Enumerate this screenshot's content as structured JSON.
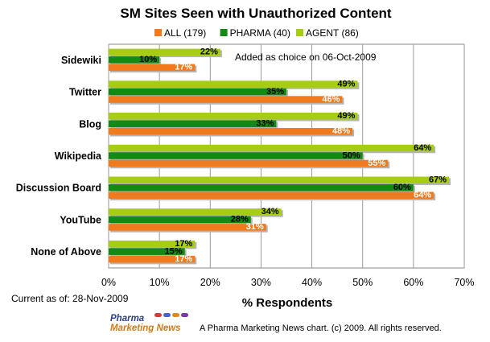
{
  "chart_data": {
    "type": "bar",
    "orientation": "horizontal",
    "title": "SM Sites Seen with Unauthorized Content",
    "categories": [
      "Sidewiki",
      "Twitter",
      "Blog",
      "Wikipedia",
      "Discussion Board",
      "YouTube",
      "None of Above"
    ],
    "series": [
      {
        "name": "ALL (179)",
        "color": "#f07a1c",
        "values": [
          17,
          46,
          48,
          55,
          64,
          31,
          17
        ]
      },
      {
        "name": "PHARMA (40)",
        "color": "#138a13",
        "values": [
          10,
          35,
          33,
          50,
          60,
          28,
          15
        ]
      },
      {
        "name": "AGENT (86)",
        "color": "#a6cc14",
        "values": [
          22,
          49,
          49,
          64,
          67,
          34,
          17
        ]
      }
    ],
    "value_suffix": "%",
    "xlabel": "% Respondents",
    "xlim": [
      0,
      70
    ],
    "xticks": [
      0,
      10,
      20,
      30,
      40,
      50,
      60,
      70
    ],
    "xtick_labels": [
      "0%",
      "10%",
      "20%",
      "30%",
      "40%",
      "50%",
      "60%",
      "70%"
    ],
    "grid": true,
    "legend": "top-center",
    "annotation": "Added as choice on 06-Oct-2009"
  },
  "footer": {
    "date_note": "Current as of: 28-Nov-2009",
    "logo_line1": "Pharma",
    "logo_line2": "Marketing News",
    "credit": "A Pharma Marketing News chart. (c) 2009. All rights reserved."
  }
}
